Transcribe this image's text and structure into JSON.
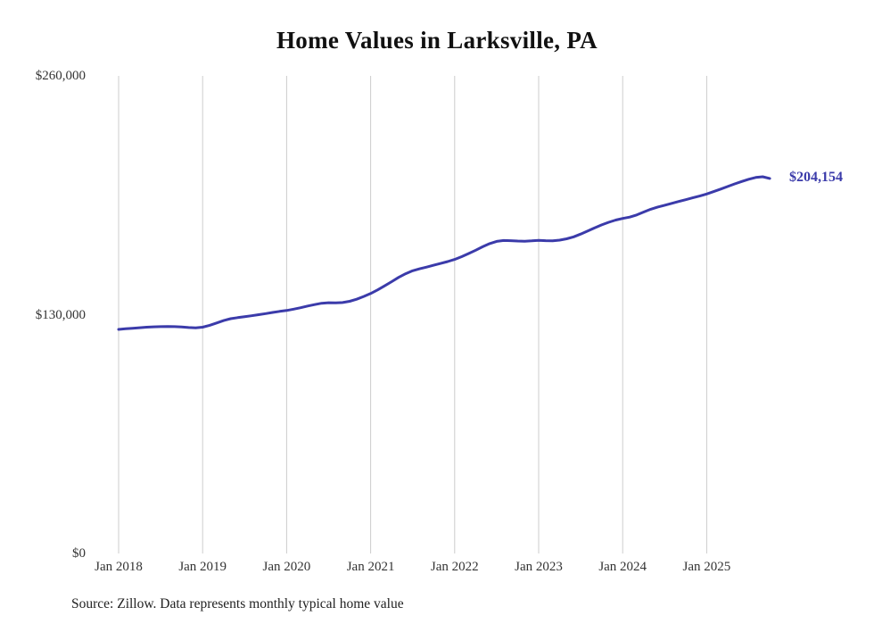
{
  "title": "Home Values in Larksville, PA",
  "source_note": "Source: Zillow. Data represents monthly typical home value",
  "colors": {
    "line": "#3b3baa",
    "grid": "#cccccc",
    "axis_text": "#333333",
    "title_text": "#111111",
    "final_label_text": "#3b3baa"
  },
  "chart_data": {
    "type": "line",
    "title": "Home Values in Larksville, PA",
    "xlabel": "",
    "ylabel": "",
    "ylim": [
      0,
      260000
    ],
    "grid": "vertical",
    "legend": "none",
    "yticks": [
      {
        "value": 0,
        "label": "$0"
      },
      {
        "value": 130000,
        "label": "$130,000"
      },
      {
        "value": 260000,
        "label": "$260,000"
      }
    ],
    "xticks": [
      "Jan 2018",
      "Jan 2019",
      "Jan 2020",
      "Jan 2021",
      "Jan 2022",
      "Jan 2023",
      "Jan 2024",
      "Jan 2025"
    ],
    "final_value": 204154,
    "final_value_label": "$204,154",
    "series": [
      {
        "name": "Monthly typical home value",
        "x": [
          "2018-01",
          "2018-02",
          "2018-03",
          "2018-04",
          "2018-05",
          "2018-06",
          "2018-07",
          "2018-08",
          "2018-09",
          "2018-10",
          "2018-11",
          "2018-12",
          "2019-01",
          "2019-02",
          "2019-03",
          "2019-04",
          "2019-05",
          "2019-06",
          "2019-07",
          "2019-08",
          "2019-09",
          "2019-10",
          "2019-11",
          "2019-12",
          "2020-01",
          "2020-02",
          "2020-03",
          "2020-04",
          "2020-05",
          "2020-06",
          "2020-07",
          "2020-08",
          "2020-09",
          "2020-10",
          "2020-11",
          "2020-12",
          "2021-01",
          "2021-02",
          "2021-03",
          "2021-04",
          "2021-05",
          "2021-06",
          "2021-07",
          "2021-08",
          "2021-09",
          "2021-10",
          "2021-11",
          "2021-12",
          "2022-01",
          "2022-02",
          "2022-03",
          "2022-04",
          "2022-05",
          "2022-06",
          "2022-07",
          "2022-08",
          "2022-09",
          "2022-10",
          "2022-11",
          "2022-12",
          "2023-01",
          "2023-02",
          "2023-03",
          "2023-04",
          "2023-05",
          "2023-06",
          "2023-07",
          "2023-08",
          "2023-09",
          "2023-10",
          "2023-11",
          "2023-12",
          "2024-01",
          "2024-02",
          "2024-03",
          "2024-04",
          "2024-05",
          "2024-06",
          "2024-07",
          "2024-08",
          "2024-09",
          "2024-10",
          "2024-11",
          "2024-12",
          "2025-01",
          "2025-02",
          "2025-03",
          "2025-04",
          "2025-05",
          "2025-06",
          "2025-07",
          "2025-08",
          "2025-09",
          "2025-10"
        ],
        "values": [
          122000,
          122300,
          122600,
          122900,
          123200,
          123400,
          123500,
          123600,
          123500,
          123300,
          123000,
          122800,
          123200,
          124200,
          125500,
          126800,
          127800,
          128400,
          128900,
          129400,
          130000,
          130600,
          131200,
          131800,
          132300,
          133000,
          133800,
          134700,
          135500,
          136200,
          136500,
          136400,
          136600,
          137300,
          138400,
          139900,
          141500,
          143500,
          145700,
          148000,
          150300,
          152300,
          153900,
          155000,
          155900,
          156900,
          157900,
          158900,
          160100,
          161600,
          163300,
          165100,
          167000,
          168700,
          169900,
          170400,
          170300,
          170100,
          170000,
          170200,
          170500,
          170300,
          170200,
          170600,
          171300,
          172400,
          173900,
          175600,
          177300,
          178900,
          180300,
          181500,
          182400,
          183100,
          184300,
          185900,
          187400,
          188600,
          189600,
          190600,
          191600,
          192600,
          193600,
          194600,
          195700,
          197000,
          198400,
          199800,
          201200,
          202500,
          203700,
          204700,
          205100,
          204154
        ]
      }
    ]
  }
}
